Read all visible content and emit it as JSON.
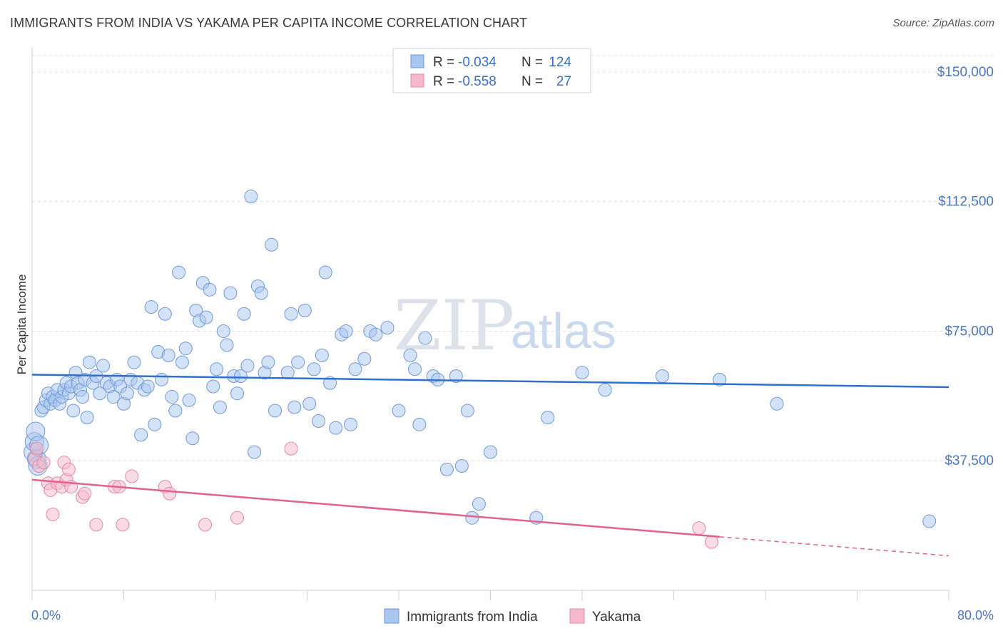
{
  "title": "IMMIGRANTS FROM INDIA VS YAKAMA PER CAPITA INCOME CORRELATION CHART",
  "source": "Source: ZipAtlas.com",
  "watermark": {
    "zip": "ZIP",
    "atlas": "atlas"
  },
  "colors": {
    "blue": "#5b8fd6",
    "blue_fill": "#a9c6ef",
    "pink": "#e56b97",
    "pink_fill": "#f6b8cc",
    "tick": "#4a78c2"
  },
  "legend": {
    "r_label": "R =",
    "n_label": "N =",
    "rows": [
      {
        "r": "-0.034",
        "n": "124"
      },
      {
        "r": "-0.558",
        "n": "27"
      }
    ]
  },
  "chart_data": {
    "type": "scatter",
    "title": "IMMIGRANTS FROM INDIA VS YAKAMA PER CAPITA INCOME CORRELATION CHART",
    "xlabel": "",
    "ylabel": "Per Capita Income",
    "xlim": [
      0,
      80
    ],
    "ylim": [
      0,
      157000
    ],
    "x_tick_labels": [
      "0.0%",
      "80.0%"
    ],
    "y_ticks": [
      37500,
      75000,
      112500,
      150000
    ],
    "y_tick_labels": [
      "$37,500",
      "$75,000",
      "$112,500",
      "$150,000"
    ],
    "grid": true,
    "legend_position": "top-center",
    "series": [
      {
        "name": "Immigrants from India",
        "color": "#5b8fd6",
        "trend": {
          "x": [
            0,
            80
          ],
          "y": [
            62400,
            58800
          ]
        },
        "points": [
          [
            0.1,
            40000
          ],
          [
            0.2,
            43000
          ],
          [
            0.3,
            46000
          ],
          [
            0.4,
            38000
          ],
          [
            0.5,
            36000
          ],
          [
            0.6,
            42000
          ],
          [
            0.8,
            52000
          ],
          [
            1.0,
            53000
          ],
          [
            1.2,
            55000
          ],
          [
            1.4,
            57000
          ],
          [
            1.6,
            54000
          ],
          [
            1.8,
            56000
          ],
          [
            2.0,
            55000
          ],
          [
            2.2,
            58000
          ],
          [
            2.4,
            54000
          ],
          [
            2.6,
            56000
          ],
          [
            2.8,
            58000
          ],
          [
            3.0,
            60000
          ],
          [
            3.2,
            57000
          ],
          [
            3.4,
            59000
          ],
          [
            3.6,
            52000
          ],
          [
            3.8,
            63000
          ],
          [
            4.0,
            60000
          ],
          [
            4.2,
            58000
          ],
          [
            4.4,
            56000
          ],
          [
            4.6,
            61000
          ],
          [
            4.8,
            50000
          ],
          [
            5.0,
            66000
          ],
          [
            5.3,
            60000
          ],
          [
            5.6,
            62000
          ],
          [
            5.9,
            57000
          ],
          [
            6.2,
            65000
          ],
          [
            6.5,
            60000
          ],
          [
            6.8,
            59000
          ],
          [
            7.1,
            56000
          ],
          [
            7.4,
            61000
          ],
          [
            7.7,
            59000
          ],
          [
            8.0,
            54000
          ],
          [
            8.3,
            57000
          ],
          [
            8.6,
            61000
          ],
          [
            8.9,
            66000
          ],
          [
            9.2,
            60000
          ],
          [
            9.5,
            45000
          ],
          [
            9.8,
            58000
          ],
          [
            10.1,
            59000
          ],
          [
            10.4,
            82000
          ],
          [
            10.7,
            48000
          ],
          [
            11.0,
            69000
          ],
          [
            11.3,
            61000
          ],
          [
            11.6,
            80000
          ],
          [
            11.9,
            68000
          ],
          [
            12.2,
            56000
          ],
          [
            12.5,
            52000
          ],
          [
            12.8,
            92000
          ],
          [
            13.1,
            66000
          ],
          [
            13.4,
            70000
          ],
          [
            13.7,
            55000
          ],
          [
            14.0,
            44000
          ],
          [
            14.3,
            81000
          ],
          [
            14.6,
            78000
          ],
          [
            14.9,
            89000
          ],
          [
            15.2,
            79000
          ],
          [
            15.5,
            87000
          ],
          [
            15.8,
            59000
          ],
          [
            16.1,
            64000
          ],
          [
            16.4,
            53000
          ],
          [
            16.7,
            75000
          ],
          [
            17.0,
            71000
          ],
          [
            17.3,
            86000
          ],
          [
            17.6,
            62000
          ],
          [
            17.9,
            57000
          ],
          [
            18.2,
            62000
          ],
          [
            18.5,
            80000
          ],
          [
            18.8,
            65000
          ],
          [
            19.1,
            114000
          ],
          [
            19.4,
            40000
          ],
          [
            19.7,
            88000
          ],
          [
            20.0,
            86000
          ],
          [
            20.3,
            63000
          ],
          [
            20.6,
            66000
          ],
          [
            20.9,
            100000
          ],
          [
            21.2,
            52000
          ],
          [
            22.3,
            63000
          ],
          [
            22.6,
            80000
          ],
          [
            22.9,
            53000
          ],
          [
            23.2,
            66000
          ],
          [
            23.8,
            81000
          ],
          [
            24.2,
            54000
          ],
          [
            24.6,
            64000
          ],
          [
            25.0,
            49000
          ],
          [
            25.3,
            68000
          ],
          [
            25.6,
            92000
          ],
          [
            26.0,
            60000
          ],
          [
            26.5,
            47000
          ],
          [
            27.0,
            74000
          ],
          [
            27.4,
            75000
          ],
          [
            27.8,
            48000
          ],
          [
            28.2,
            64000
          ],
          [
            29.0,
            67000
          ],
          [
            29.5,
            75000
          ],
          [
            30.0,
            74000
          ],
          [
            31.0,
            76000
          ],
          [
            32.0,
            52000
          ],
          [
            33.0,
            68000
          ],
          [
            33.4,
            64000
          ],
          [
            33.8,
            48000
          ],
          [
            34.3,
            73000
          ],
          [
            35.0,
            62000
          ],
          [
            35.4,
            61000
          ],
          [
            36.2,
            35000
          ],
          [
            37.0,
            62000
          ],
          [
            37.5,
            36000
          ],
          [
            38.0,
            52000
          ],
          [
            38.4,
            21000
          ],
          [
            39.0,
            25000
          ],
          [
            40.0,
            40000
          ],
          [
            44.0,
            21000
          ],
          [
            45.0,
            50000
          ],
          [
            48.0,
            63000
          ],
          [
            50.0,
            58000
          ],
          [
            55.0,
            62000
          ],
          [
            60.0,
            61000
          ],
          [
            65.0,
            54000
          ],
          [
            78.3,
            20000
          ]
        ]
      },
      {
        "name": "Yakama",
        "color": "#e56b97",
        "trend": {
          "x": [
            0,
            80
          ],
          "y": [
            32000,
            10000
          ],
          "solid_until_x": 60
        },
        "points": [
          [
            0.2,
            38000
          ],
          [
            0.4,
            41000
          ],
          [
            0.6,
            36000
          ],
          [
            1.0,
            37000
          ],
          [
            1.4,
            31000
          ],
          [
            1.6,
            29000
          ],
          [
            1.8,
            22000
          ],
          [
            2.2,
            31000
          ],
          [
            2.6,
            30000
          ],
          [
            2.8,
            37000
          ],
          [
            3.0,
            32000
          ],
          [
            3.2,
            35000
          ],
          [
            3.4,
            30000
          ],
          [
            4.4,
            27000
          ],
          [
            4.6,
            28000
          ],
          [
            5.6,
            19000
          ],
          [
            7.2,
            30000
          ],
          [
            7.6,
            30000
          ],
          [
            7.9,
            19000
          ],
          [
            8.7,
            33000
          ],
          [
            11.6,
            30000
          ],
          [
            12.0,
            28000
          ],
          [
            15.1,
            19000
          ],
          [
            17.9,
            21000
          ],
          [
            22.6,
            41000
          ],
          [
            58.2,
            18000
          ],
          [
            59.3,
            14000
          ]
        ]
      }
    ]
  },
  "bottom_legend": {
    "india": "Immigrants from India",
    "yakama": "Yakama"
  }
}
